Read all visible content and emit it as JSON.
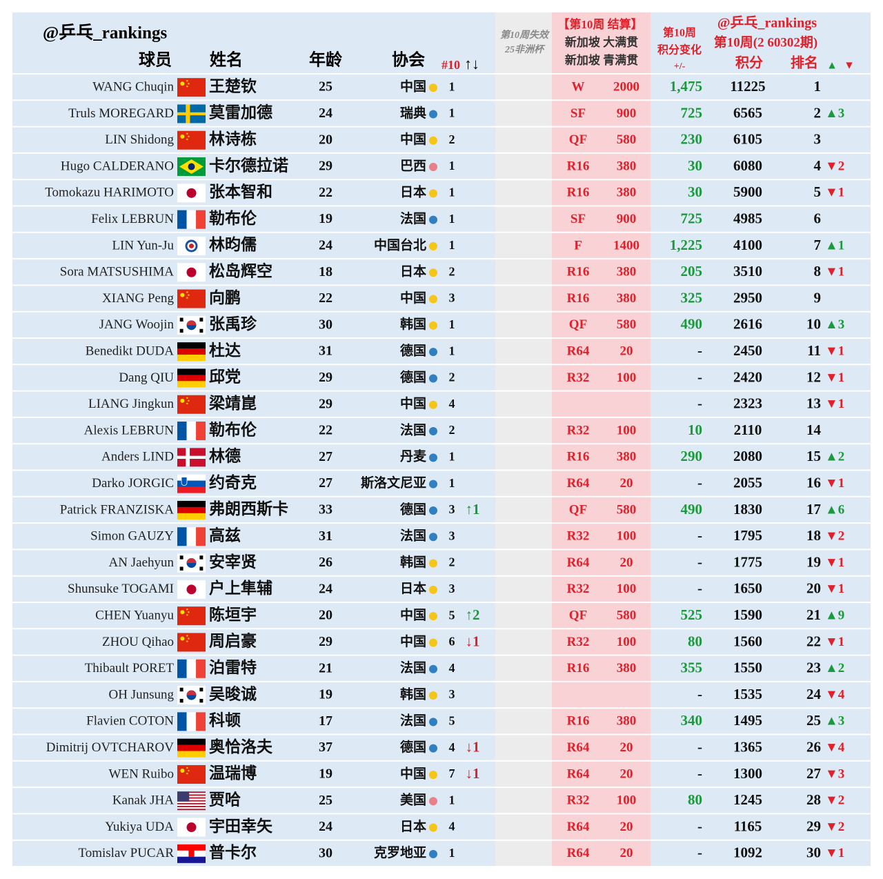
{
  "header": {
    "title": "@乒乓_rankings",
    "col_player": "球员",
    "col_name": "姓名",
    "col_age": "年龄",
    "col_assoc": "协会",
    "col_n10": "#10",
    "col_n10_arrows": "↑↓",
    "expire_1": "第10周失效",
    "expire_2": "25非洲杯",
    "result_1": "【第10周 结算】",
    "result_2": "新加坡 大满贯",
    "result_3": "新加坡 青满贯",
    "delta_1": "第10周",
    "delta_2": "积分变化",
    "delta_3": "+/-",
    "right_1": "@乒乓_rankings",
    "right_2": "第10周(2 60302期)",
    "col_points": "积分",
    "col_rank": "排名",
    "up": "▲",
    "down": "▼"
  },
  "colors": {
    "red": "#e0202a",
    "green": "#1a9a3a",
    "row": "#dde9f4",
    "grey": "#ececec",
    "pink": "#f9d2d6"
  },
  "table": {
    "rows": [
      {
        "en": "WANG Chuqin",
        "zh": "王楚钦",
        "age": 25,
        "assoc": "中国",
        "dot": "#f5c518",
        "n10": 1,
        "stage": "W",
        "pts": 2000,
        "delta": "1,475",
        "total": 11225,
        "rank": 1
      },
      {
        "en": "Truls MOREGARD",
        "zh": "莫雷加德",
        "age": 24,
        "assoc": "瑞典",
        "dot": "#2f7fc1",
        "n10": 1,
        "stage": "SF",
        "pts": 900,
        "delta": 725,
        "total": 6565,
        "rank": 2,
        "rchg": "▲3",
        "rchg_color": "#1a9a3a"
      },
      {
        "en": "LIN Shidong",
        "zh": "林诗栋",
        "age": 20,
        "assoc": "中国",
        "dot": "#f5c518",
        "n10": 2,
        "stage": "QF",
        "pts": 580,
        "delta": 230,
        "total": 6105,
        "rank": 3
      },
      {
        "en": "Hugo CALDERANO",
        "zh": "卡尔德拉诺",
        "age": 29,
        "assoc": "巴西",
        "dot": "#e8808a",
        "n10": 1,
        "stage": "R16",
        "pts": 380,
        "delta": 30,
        "total": 6080,
        "rank": 4,
        "rchg": "▼2",
        "rchg_color": "#e0202a"
      },
      {
        "en": "Tomokazu HARIMOTO",
        "zh": "张本智和",
        "age": 22,
        "assoc": "日本",
        "dot": "#f5c518",
        "n10": 1,
        "stage": "R16",
        "pts": 380,
        "delta": 30,
        "total": 5900,
        "rank": 5,
        "rchg": "▼1",
        "rchg_color": "#e0202a"
      },
      {
        "en": "Felix LEBRUN",
        "zh": "勒布伦",
        "age": 19,
        "assoc": "法国",
        "dot": "#2f7fc1",
        "n10": 1,
        "stage": "SF",
        "pts": 900,
        "delta": 725,
        "total": 4985,
        "rank": 6
      },
      {
        "en": "LIN Yun-Ju",
        "zh": "林昀儒",
        "age": 24,
        "assoc": "中国台北",
        "dot": "#f5c518",
        "n10": 1,
        "stage": "F",
        "pts": 1400,
        "delta": "1,225",
        "total": 4100,
        "rank": 7,
        "rchg": "▲1",
        "rchg_color": "#1a9a3a"
      },
      {
        "en": "Sora MATSUSHIMA",
        "zh": "松岛辉空",
        "age": 18,
        "assoc": "日本",
        "dot": "#f5c518",
        "n10": 2,
        "stage": "R16",
        "pts": 380,
        "delta": 205,
        "total": 3510,
        "rank": 8,
        "rchg": "▼1",
        "rchg_color": "#e0202a"
      },
      {
        "en": "XIANG Peng",
        "zh": "向鹏",
        "age": 22,
        "assoc": "中国",
        "dot": "#f5c518",
        "n10": 3,
        "stage": "R16",
        "pts": 380,
        "delta": 325,
        "total": 2950,
        "rank": 9
      },
      {
        "en": "JANG Woojin",
        "zh": "张禹珍",
        "age": 30,
        "assoc": "韩国",
        "dot": "#f5c518",
        "n10": 1,
        "stage": "QF",
        "pts": 580,
        "delta": 490,
        "total": 2616,
        "rank": 10,
        "rchg": "▲3",
        "rchg_color": "#1a9a3a"
      },
      {
        "en": "Benedikt DUDA",
        "zh": "杜达",
        "age": 31,
        "assoc": "德国",
        "dot": "#2f7fc1",
        "n10": 1,
        "stage": "R64",
        "pts": 20,
        "delta": "-",
        "total": 2450,
        "rank": 11,
        "rchg": "▼1",
        "rchg_color": "#e0202a"
      },
      {
        "en": "Dang QIU",
        "zh": "邱党",
        "age": 29,
        "assoc": "德国",
        "dot": "#2f7fc1",
        "n10": 2,
        "stage": "R32",
        "pts": 100,
        "delta": "-",
        "total": 2420,
        "rank": 12,
        "rchg": "▼1",
        "rchg_color": "#e0202a"
      },
      {
        "en": "LIANG Jingkun",
        "zh": "梁靖崑",
        "age": 29,
        "assoc": "中国",
        "dot": "#f5c518",
        "n10": 4,
        "delta": "-",
        "total": 2323,
        "rank": 13,
        "rchg": "▼1",
        "rchg_color": "#e0202a"
      },
      {
        "en": "Alexis LEBRUN",
        "zh": "勒布伦",
        "age": 22,
        "assoc": "法国",
        "dot": "#2f7fc1",
        "n10": 2,
        "stage": "R32",
        "pts": 100,
        "delta": 10,
        "total": 2110,
        "rank": 14
      },
      {
        "en": "Anders LIND",
        "zh": "林德",
        "age": 27,
        "assoc": "丹麦",
        "dot": "#2f7fc1",
        "n10": 1,
        "stage": "R16",
        "pts": 380,
        "delta": 290,
        "total": 2080,
        "rank": 15,
        "rchg": "▲2",
        "rchg_color": "#1a9a3a"
      },
      {
        "en": "Darko JORGIC",
        "zh": "约奇克",
        "age": 27,
        "assoc": "斯洛文尼亚",
        "dot": "#2f7fc1",
        "n10": 1,
        "stage": "R64",
        "pts": 20,
        "delta": "-",
        "total": 2055,
        "rank": 16,
        "rchg": "▼1",
        "rchg_color": "#e0202a"
      },
      {
        "en": "Patrick FRANZISKA",
        "zh": "弗朗西斯卡",
        "age": 33,
        "assoc": "德国",
        "dot": "#2f7fc1",
        "n10": 3,
        "n10chg": "↑1",
        "n10chg_color": "#1a9a3a",
        "stage": "QF",
        "pts": 580,
        "delta": 490,
        "total": 1830,
        "rank": 17,
        "rchg": "▲6",
        "rchg_color": "#1a9a3a"
      },
      {
        "en": "Simon GAUZY",
        "zh": "高兹",
        "age": 31,
        "assoc": "法国",
        "dot": "#2f7fc1",
        "n10": 3,
        "stage": "R32",
        "pts": 100,
        "delta": "-",
        "total": 1795,
        "rank": 18,
        "rchg": "▼2",
        "rchg_color": "#e0202a"
      },
      {
        "en": "AN Jaehyun",
        "zh": "安宰贤",
        "age": 26,
        "assoc": "韩国",
        "dot": "#f5c518",
        "n10": 2,
        "stage": "R64",
        "pts": 20,
        "delta": "-",
        "total": 1775,
        "rank": 19,
        "rchg": "▼1",
        "rchg_color": "#e0202a"
      },
      {
        "en": "Shunsuke TOGAMI",
        "zh": "户上隼辅",
        "age": 24,
        "assoc": "日本",
        "dot": "#f5c518",
        "n10": 3,
        "stage": "R32",
        "pts": 100,
        "delta": "-",
        "total": 1650,
        "rank": 20,
        "rchg": "▼1",
        "rchg_color": "#e0202a"
      },
      {
        "en": "CHEN Yuanyu",
        "zh": "陈垣宇",
        "age": 20,
        "assoc": "中国",
        "dot": "#f5c518",
        "n10": 5,
        "n10chg": "↑2",
        "n10chg_color": "#1a9a3a",
        "stage": "QF",
        "pts": 580,
        "delta": 525,
        "total": 1590,
        "rank": 21,
        "rchg": "▲9",
        "rchg_color": "#1a9a3a"
      },
      {
        "en": "ZHOU Qihao",
        "zh": "周启豪",
        "age": 29,
        "assoc": "中国",
        "dot": "#f5c518",
        "n10": 6,
        "n10chg": "↓1",
        "n10chg_color": "#e0202a",
        "stage": "R32",
        "pts": 100,
        "delta": 80,
        "total": 1560,
        "rank": 22,
        "rchg": "▼1",
        "rchg_color": "#e0202a"
      },
      {
        "en": "Thibault PORET",
        "zh": "泊雷特",
        "age": 21,
        "assoc": "法国",
        "dot": "#2f7fc1",
        "n10": 4,
        "stage": "R16",
        "pts": 380,
        "delta": 355,
        "total": 1550,
        "rank": 23,
        "rchg": "▲2",
        "rchg_color": "#1a9a3a"
      },
      {
        "en": "OH Junsung",
        "zh": "吴晙诚",
        "age": 19,
        "assoc": "韩国",
        "dot": "#f5c518",
        "n10": 3,
        "delta": "-",
        "total": 1535,
        "rank": 24,
        "rchg": "▼4",
        "rchg_color": "#e0202a"
      },
      {
        "en": "Flavien COTON",
        "zh": "科顿",
        "age": 17,
        "assoc": "法国",
        "dot": "#2f7fc1",
        "n10": 5,
        "stage": "R16",
        "pts": 380,
        "delta": 340,
        "total": 1495,
        "rank": 25,
        "rchg": "▲3",
        "rchg_color": "#1a9a3a"
      },
      {
        "en": "Dimitrij OVTCHAROV",
        "zh": "奥恰洛夫",
        "age": 37,
        "assoc": "德国",
        "dot": "#2f7fc1",
        "n10": 4,
        "n10chg": "↓1",
        "n10chg_color": "#e0202a",
        "stage": "R64",
        "pts": 20,
        "delta": "-",
        "total": 1365,
        "rank": 26,
        "rchg": "▼4",
        "rchg_color": "#e0202a"
      },
      {
        "en": "WEN Ruibo",
        "zh": "温瑞博",
        "age": 19,
        "assoc": "中国",
        "dot": "#f5c518",
        "n10": 7,
        "n10chg": "↓1",
        "n10chg_color": "#e0202a",
        "stage": "R64",
        "pts": 20,
        "delta": "-",
        "total": 1300,
        "rank": 27,
        "rchg": "▼3",
        "rchg_color": "#e0202a"
      },
      {
        "en": "Kanak JHA",
        "zh": "贾哈",
        "age": 25,
        "assoc": "美国",
        "dot": "#e8808a",
        "n10": 1,
        "stage": "R32",
        "pts": 100,
        "delta": 80,
        "total": 1245,
        "rank": 28,
        "rchg": "▼2",
        "rchg_color": "#e0202a"
      },
      {
        "en": "Yukiya UDA",
        "zh": "宇田幸矢",
        "age": 24,
        "assoc": "日本",
        "dot": "#f5c518",
        "n10": 4,
        "stage": "R64",
        "pts": 20,
        "delta": "-",
        "total": 1165,
        "rank": 29,
        "rchg": "▼2",
        "rchg_color": "#e0202a"
      },
      {
        "en": "Tomislav PUCAR",
        "zh": "普卡尔",
        "age": 30,
        "assoc": "克罗地亚",
        "dot": "#2f7fc1",
        "n10": 1,
        "stage": "R64",
        "pts": 20,
        "delta": "-",
        "total": 1092,
        "rank": 30,
        "rchg": "▼1",
        "rchg_color": "#e0202a"
      }
    ]
  }
}
